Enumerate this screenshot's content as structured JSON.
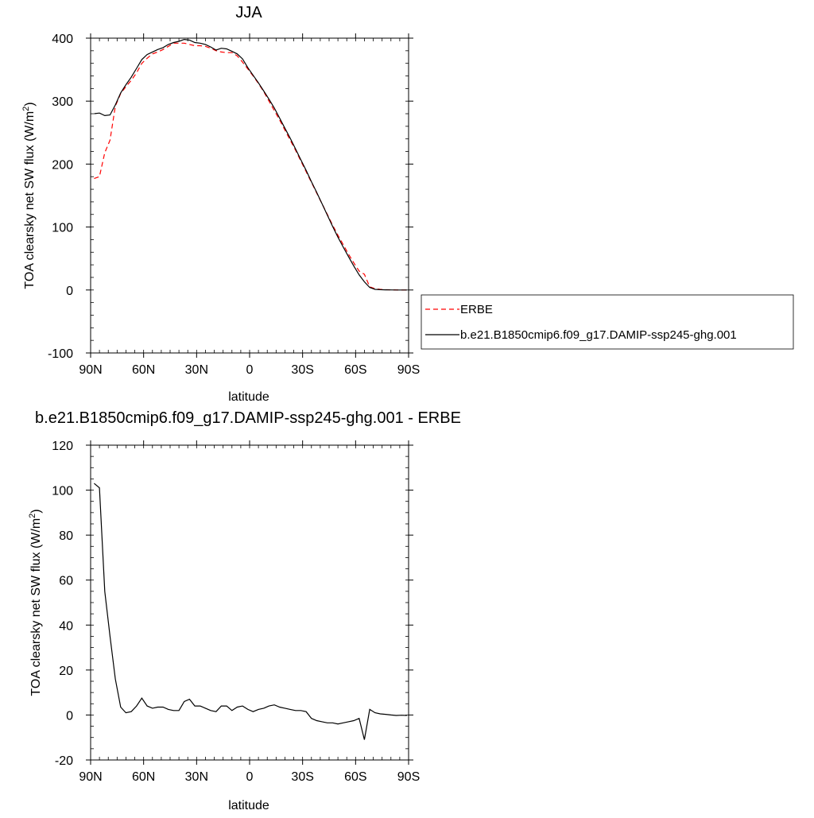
{
  "chart_data": [
    {
      "type": "line",
      "title": "JJA",
      "xlabel": "latitude",
      "ylabel": "TOA clearsky net SW flux (W/m²)",
      "ylabel_main": "TOA clearsky net SW flux (W/m",
      "ylabel_sup": "2",
      "ylabel_end": ")",
      "xlim": [
        90,
        -90
      ],
      "ylim": [
        -100,
        400
      ],
      "xticks": [
        90,
        60,
        30,
        0,
        -30,
        -60,
        -90
      ],
      "xtick_labels": [
        "90N",
        "60N",
        "30N",
        "0",
        "30S",
        "60S",
        "90S"
      ],
      "yticks": [
        -100,
        0,
        100,
        200,
        300,
        400
      ],
      "ytick_labels": [
        "-100",
        "0",
        "100",
        "200",
        "300",
        "400"
      ],
      "legend_position": "right",
      "series": [
        {
          "name": "ERBE",
          "color": "#ff0000",
          "style": "dashed",
          "x": [
            88,
            85,
            82,
            79,
            76,
            73,
            70,
            67,
            64,
            61,
            58,
            55,
            52,
            49,
            46,
            43,
            40,
            37,
            34,
            31,
            28,
            25,
            22,
            19,
            16,
            13,
            10,
            7,
            4,
            1,
            -2,
            -5,
            -8,
            -11,
            -14,
            -17,
            -20,
            -23,
            -26,
            -29,
            -32,
            -35,
            -38,
            -41,
            -44,
            -47,
            -50,
            -53,
            -56,
            -59,
            -62,
            -65,
            -68,
            -71,
            -74,
            -77,
            -80,
            -83,
            -86,
            -89
          ],
          "y": [
            177,
            180,
            218,
            238,
            292,
            312,
            323,
            333,
            345,
            360,
            368,
            375,
            378,
            382,
            387,
            392,
            392,
            392,
            390,
            388,
            388,
            387,
            384,
            380,
            378,
            377,
            377,
            372,
            362,
            351,
            340,
            328,
            315,
            300,
            285,
            270,
            254,
            238,
            222,
            205,
            188,
            171,
            154,
            137,
            120,
            103,
            87,
            72,
            57,
            43,
            30,
            25,
            5,
            2,
            1,
            0.5,
            0.3,
            0.1,
            0,
            0
          ]
        },
        {
          "name": "b.e21.B1850cmip6.f09_g17.DAMIP-ssp245-ghg.001",
          "color": "#000000",
          "style": "solid",
          "x": [
            88,
            85,
            82,
            79,
            76,
            73,
            70,
            67,
            64,
            61,
            58,
            55,
            52,
            49,
            46,
            43,
            40,
            37,
            34,
            31,
            28,
            25,
            22,
            19,
            16,
            13,
            10,
            7,
            4,
            1,
            -2,
            -5,
            -8,
            -11,
            -14,
            -17,
            -20,
            -23,
            -26,
            -29,
            -32,
            -35,
            -38,
            -41,
            -44,
            -47,
            -50,
            -53,
            -56,
            -59,
            -62,
            -65,
            -68,
            -71,
            -74,
            -77,
            -80,
            -83,
            -86,
            -89
          ],
          "y": [
            280,
            281,
            277,
            278,
            294,
            313,
            326,
            338,
            352,
            366,
            374,
            378,
            382,
            385,
            390,
            393,
            395,
            398,
            397,
            393,
            392,
            390,
            386,
            381,
            384,
            383,
            379,
            375,
            367,
            353,
            341,
            329,
            316,
            303,
            289,
            273,
            257,
            241,
            224,
            207,
            190,
            172,
            155,
            137,
            119,
            101,
            84,
            68,
            53,
            38,
            24,
            13,
            4,
            1,
            0.5,
            0.2,
            0.1,
            0,
            0,
            0
          ]
        }
      ]
    },
    {
      "type": "line",
      "title": "b.e21.B1850cmip6.f09_g17.DAMIP-ssp245-ghg.001 - ERBE",
      "xlabel": "latitude",
      "ylabel": "TOA clearsky net SW flux (W/m²)",
      "ylabel_main": "TOA clearsky net SW flux (W/m",
      "ylabel_sup": "2",
      "ylabel_end": ")",
      "xlim": [
        90,
        -90
      ],
      "ylim": [
        -20,
        120
      ],
      "xticks": [
        90,
        60,
        30,
        0,
        -30,
        -60,
        -90
      ],
      "xtick_labels": [
        "90N",
        "60N",
        "30N",
        "0",
        "30S",
        "60S",
        "90S"
      ],
      "yticks": [
        -20,
        0,
        20,
        40,
        60,
        80,
        100,
        120
      ],
      "ytick_labels": [
        "-20",
        "0",
        "20",
        "40",
        "60",
        "80",
        "100",
        "120"
      ],
      "series": [
        {
          "color": "#000000",
          "style": "solid",
          "x": [
            88,
            85,
            82,
            79,
            76,
            73,
            70,
            67,
            64,
            61,
            58,
            55,
            52,
            49,
            46,
            43,
            40,
            37,
            34,
            31,
            28,
            25,
            22,
            19,
            16,
            13,
            10,
            7,
            4,
            1,
            -2,
            -5,
            -8,
            -11,
            -14,
            -17,
            -20,
            -23,
            -26,
            -29,
            -32,
            -35,
            -38,
            -41,
            -44,
            -47,
            -50,
            -53,
            -56,
            -59,
            -62,
            -65,
            -68,
            -71,
            -74,
            -77,
            -80,
            -83,
            -86,
            -89
          ],
          "y": [
            103,
            101,
            55,
            35,
            16,
            3.5,
            1,
            1.5,
            4,
            7.5,
            4,
            3,
            3.5,
            3.5,
            2.5,
            2,
            2,
            6,
            7,
            4,
            4,
            3,
            2,
            1.5,
            4,
            4,
            2,
            3.5,
            4,
            2.5,
            1.5,
            2.5,
            3,
            4,
            4.5,
            3.5,
            3,
            2.5,
            2,
            2,
            1.5,
            -1.5,
            -2.5,
            -3,
            -3.5,
            -3.5,
            -4,
            -3.5,
            -3,
            -2.5,
            -1.5,
            -11,
            2.5,
            1,
            0.5,
            0.3,
            0,
            -0.2,
            -0.1,
            -0.2
          ]
        }
      ]
    }
  ],
  "legend": {
    "items": [
      {
        "label": "ERBE",
        "color": "#ff0000",
        "style": "dashed"
      },
      {
        "label": "b.e21.B1850cmip6.f09_g17.DAMIP-ssp245-ghg.001",
        "color": "#000000",
        "style": "solid"
      }
    ]
  }
}
